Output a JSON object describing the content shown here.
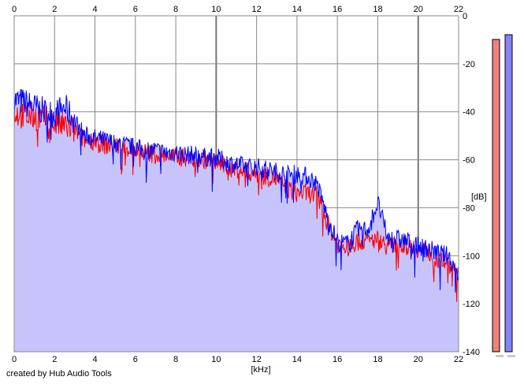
{
  "app": {
    "footer_text": "created by Hub Audio Tools"
  },
  "colors": {
    "background": "#ffffff",
    "fill_area": "#c6c4fb",
    "channel_left": "#ff0000",
    "channel_right": "#0000ff",
    "grid_major": "#888888",
    "grid_minor": "#d0d0d0",
    "meter_left": "#f08080",
    "meter_right": "#8484f4"
  },
  "chart_data": {
    "type": "line",
    "title": "",
    "xlabel": "[kHz]",
    "ylabel": "[dB]",
    "xlim": [
      0,
      22
    ],
    "ylim": [
      -140,
      0
    ],
    "x_ticks": [
      "0",
      "2",
      "4",
      "6",
      "8",
      "10",
      "12",
      "14",
      "16",
      "18",
      "20",
      "22"
    ],
    "y_ticks": [
      "0",
      "-20",
      "-40",
      "-60",
      "-80",
      "-100",
      "-120",
      "-140"
    ],
    "grid": true,
    "fill": true,
    "x": [
      0,
      0.5,
      1,
      1.5,
      2,
      2.5,
      3,
      3.5,
      4,
      4.5,
      5,
      5.5,
      6,
      6.5,
      7,
      7.5,
      8,
      8.5,
      9,
      9.5,
      10,
      10.5,
      11,
      11.5,
      12,
      12.5,
      13,
      13.5,
      14,
      14.5,
      15,
      15.5,
      16,
      16.5,
      17,
      17.5,
      18,
      18.5,
      19,
      19.5,
      20,
      20.5,
      21,
      21.5,
      22
    ],
    "series": [
      {
        "color": "#0000ff",
        "values": [
          -35,
          -36,
          -38,
          -40,
          -41,
          -38,
          -44,
          -50,
          -51,
          -52,
          -53,
          -54,
          -55,
          -56,
          -56,
          -57,
          -57,
          -58,
          -58,
          -59,
          -59,
          -61,
          -62,
          -63,
          -63,
          -64,
          -65,
          -66,
          -66,
          -67,
          -70,
          -84,
          -94,
          -95,
          -89,
          -89,
          -78,
          -93,
          -93,
          -94,
          -96,
          -97,
          -99,
          -100,
          -108
        ]
      },
      {
        "color": "#ff0000",
        "values": [
          -40,
          -42,
          -42,
          -43,
          -45,
          -46,
          -48,
          -52,
          -52,
          -54,
          -54,
          -55,
          -56,
          -57,
          -58,
          -58,
          -59,
          -59,
          -60,
          -60,
          -61,
          -63,
          -64,
          -65,
          -66,
          -67,
          -68,
          -72,
          -74,
          -74,
          -75,
          -86,
          -95,
          -97,
          -94,
          -94,
          -93,
          -96,
          -95,
          -96,
          -97,
          -98,
          -102,
          -103,
          -109
        ]
      }
    ]
  },
  "meters": {
    "left_level": -2,
    "right_level": 0
  }
}
